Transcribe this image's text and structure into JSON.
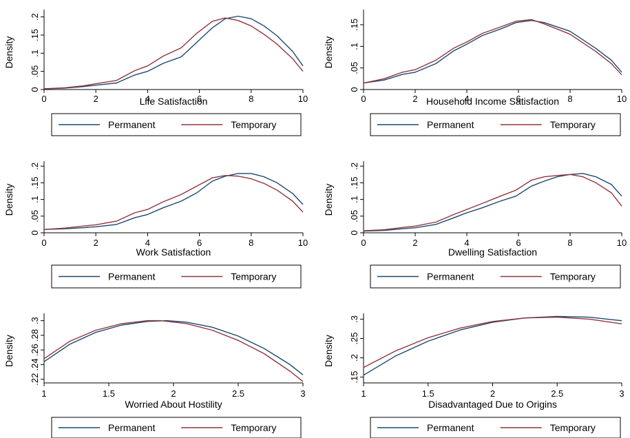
{
  "colors": {
    "permanent": "#1a476f",
    "temporary": "#90353b"
  },
  "chart_data": [
    {
      "type": "line",
      "xlabel": "Life Satisfaction",
      "ylabel": "Density",
      "xlim": [
        0,
        10
      ],
      "ylim": [
        0,
        0.22
      ],
      "xticks": [
        "0",
        "2",
        "4",
        "6",
        "8",
        "10"
      ],
      "yticks": [
        "0",
        ".05",
        ".1",
        ".15",
        ".2"
      ],
      "legend": [
        "Permanent",
        "Temporary"
      ],
      "series": [
        {
          "name": "Permanent",
          "x": [
            0,
            0.8,
            1.5,
            2.0,
            2.8,
            3.5,
            4.0,
            4.6,
            5.3,
            5.9,
            6.5,
            7.0,
            7.5,
            8.0,
            8.5,
            9.0,
            9.6,
            10
          ],
          "y": [
            0.002,
            0.004,
            0.008,
            0.012,
            0.018,
            0.04,
            0.05,
            0.072,
            0.09,
            0.13,
            0.17,
            0.195,
            0.202,
            0.195,
            0.175,
            0.148,
            0.105,
            0.065
          ]
        },
        {
          "name": "Temporary",
          "x": [
            0,
            0.8,
            1.5,
            2.0,
            2.8,
            3.5,
            4.0,
            4.6,
            5.3,
            5.9,
            6.5,
            7.0,
            7.5,
            8.0,
            8.5,
            9.0,
            9.6,
            10
          ],
          "y": [
            0.002,
            0.005,
            0.01,
            0.016,
            0.025,
            0.052,
            0.065,
            0.092,
            0.115,
            0.155,
            0.188,
            0.197,
            0.19,
            0.175,
            0.152,
            0.125,
            0.085,
            0.05
          ]
        }
      ]
    },
    {
      "type": "line",
      "xlabel": "Household Income Satisfaction",
      "ylabel": "Density",
      "xlim": [
        0,
        10
      ],
      "ylim": [
        0,
        0.185
      ],
      "xticks": [
        "0",
        "2",
        "4",
        "6",
        "8",
        "10"
      ],
      "yticks": [
        "0",
        ".05",
        ".1",
        ".15"
      ],
      "legend": [
        "Permanent",
        "Temporary"
      ],
      "series": [
        {
          "name": "Permanent",
          "x": [
            0,
            0.8,
            1.5,
            2.0,
            2.8,
            3.5,
            4.0,
            4.6,
            5.3,
            5.9,
            6.5,
            7.0,
            7.5,
            8.0,
            8.5,
            9.0,
            9.6,
            10
          ],
          "y": [
            0.015,
            0.022,
            0.035,
            0.04,
            0.06,
            0.09,
            0.105,
            0.125,
            0.14,
            0.155,
            0.16,
            0.155,
            0.145,
            0.135,
            0.115,
            0.095,
            0.068,
            0.04
          ]
        },
        {
          "name": "Temporary",
          "x": [
            0,
            0.8,
            1.5,
            2.0,
            2.8,
            3.5,
            4.0,
            4.6,
            5.3,
            5.9,
            6.5,
            7.0,
            7.5,
            8.0,
            8.5,
            9.0,
            9.6,
            10
          ],
          "y": [
            0.015,
            0.025,
            0.04,
            0.046,
            0.068,
            0.096,
            0.11,
            0.13,
            0.145,
            0.158,
            0.162,
            0.152,
            0.14,
            0.128,
            0.108,
            0.088,
            0.06,
            0.034
          ]
        }
      ]
    },
    {
      "type": "line",
      "xlabel": "Work Satisfaction",
      "ylabel": "Density",
      "xlim": [
        0,
        10
      ],
      "ylim": [
        0,
        0.215
      ],
      "xticks": [
        "0",
        "2",
        "4",
        "6",
        "8",
        "10"
      ],
      "yticks": [
        "0",
        ".05",
        ".1",
        ".15",
        ".2"
      ],
      "legend": [
        "Permanent",
        "Temporary"
      ],
      "series": [
        {
          "name": "Permanent",
          "x": [
            0,
            0.8,
            1.5,
            2.0,
            2.8,
            3.5,
            4.0,
            4.6,
            5.3,
            5.9,
            6.5,
            7.0,
            7.5,
            8.0,
            8.5,
            9.0,
            9.6,
            10
          ],
          "y": [
            0.01,
            0.012,
            0.015,
            0.018,
            0.025,
            0.045,
            0.055,
            0.075,
            0.095,
            0.12,
            0.155,
            0.17,
            0.178,
            0.178,
            0.168,
            0.15,
            0.118,
            0.085
          ]
        },
        {
          "name": "Temporary",
          "x": [
            0,
            0.8,
            1.5,
            2.0,
            2.8,
            3.5,
            4.0,
            4.6,
            5.3,
            5.9,
            6.5,
            7.0,
            7.5,
            8.0,
            8.5,
            9.0,
            9.6,
            10
          ],
          "y": [
            0.01,
            0.014,
            0.02,
            0.024,
            0.035,
            0.06,
            0.07,
            0.093,
            0.115,
            0.14,
            0.165,
            0.172,
            0.17,
            0.162,
            0.148,
            0.128,
            0.095,
            0.062
          ]
        }
      ]
    },
    {
      "type": "line",
      "xlabel": "Dwelling Satisfaction",
      "ylabel": "Density",
      "xlim": [
        0,
        10
      ],
      "ylim": [
        0,
        0.215
      ],
      "xticks": [
        "0",
        "2",
        "4",
        "6",
        "8",
        "10"
      ],
      "yticks": [
        "0",
        ".05",
        ".1",
        ".15",
        ".2"
      ],
      "legend": [
        "Permanent",
        "Temporary"
      ],
      "series": [
        {
          "name": "Permanent",
          "x": [
            0,
            0.8,
            1.5,
            2.0,
            2.8,
            3.5,
            4.0,
            4.6,
            5.3,
            5.9,
            6.5,
            7.0,
            7.5,
            8.0,
            8.5,
            9.0,
            9.6,
            10
          ],
          "y": [
            0.005,
            0.007,
            0.012,
            0.015,
            0.025,
            0.045,
            0.06,
            0.075,
            0.095,
            0.11,
            0.14,
            0.155,
            0.168,
            0.175,
            0.178,
            0.168,
            0.145,
            0.11
          ]
        },
        {
          "name": "Temporary",
          "x": [
            0,
            0.8,
            1.5,
            2.0,
            2.8,
            3.5,
            4.0,
            4.6,
            5.3,
            5.9,
            6.5,
            7.0,
            7.5,
            8.0,
            8.5,
            9.0,
            9.6,
            10
          ],
          "y": [
            0.006,
            0.009,
            0.016,
            0.02,
            0.032,
            0.055,
            0.07,
            0.088,
            0.11,
            0.128,
            0.158,
            0.168,
            0.172,
            0.175,
            0.168,
            0.15,
            0.12,
            0.08
          ]
        }
      ]
    },
    {
      "type": "line",
      "xlabel": "Worried About Hostility",
      "ylabel": "Density",
      "xlim": [
        1,
        3
      ],
      "ylim": [
        0.215,
        0.31
      ],
      "xticks": [
        "1",
        "1.5",
        "2",
        "2.5",
        "3"
      ],
      "ytick_values": [
        0.22,
        0.24,
        0.26,
        0.28,
        0.3
      ],
      "yticks": [
        ".22",
        ".24",
        ".26",
        ".28",
        ".3"
      ],
      "legend": [
        "Permanent",
        "Temporary"
      ],
      "series": [
        {
          "name": "Permanent",
          "x": [
            1,
            1.2,
            1.4,
            1.6,
            1.8,
            1.95,
            2.1,
            2.3,
            2.5,
            2.7,
            2.9,
            3
          ],
          "y": [
            0.244,
            0.268,
            0.284,
            0.294,
            0.299,
            0.3,
            0.298,
            0.291,
            0.279,
            0.262,
            0.24,
            0.226
          ]
        },
        {
          "name": "Temporary",
          "x": [
            1,
            1.2,
            1.4,
            1.6,
            1.8,
            1.9,
            2.1,
            2.3,
            2.5,
            2.7,
            2.9,
            3
          ],
          "y": [
            0.248,
            0.272,
            0.287,
            0.296,
            0.3,
            0.3,
            0.296,
            0.287,
            0.273,
            0.255,
            0.231,
            0.217
          ]
        }
      ]
    },
    {
      "type": "line",
      "xlabel": "Disadvantaged Due to Origins",
      "ylabel": "Density",
      "xlim": [
        1,
        3
      ],
      "ylim": [
        0.135,
        0.315
      ],
      "xticks": [
        "1",
        "1.5",
        "2",
        "2.5",
        "3"
      ],
      "ytick_values": [
        0.15,
        0.2,
        0.25,
        0.3
      ],
      "yticks": [
        ".15",
        ".2",
        ".25",
        ".3"
      ],
      "legend": [
        "Permanent",
        "Temporary"
      ],
      "series": [
        {
          "name": "Permanent",
          "x": [
            1,
            1.25,
            1.5,
            1.75,
            2,
            2.25,
            2.5,
            2.75,
            3
          ],
          "y": [
            0.155,
            0.205,
            0.243,
            0.272,
            0.292,
            0.303,
            0.307,
            0.305,
            0.296
          ]
        },
        {
          "name": "Temporary",
          "x": [
            1,
            1.25,
            1.5,
            1.75,
            2,
            2.25,
            2.5,
            2.75,
            3
          ],
          "y": [
            0.175,
            0.218,
            0.252,
            0.277,
            0.294,
            0.303,
            0.305,
            0.3,
            0.288
          ]
        }
      ]
    }
  ]
}
